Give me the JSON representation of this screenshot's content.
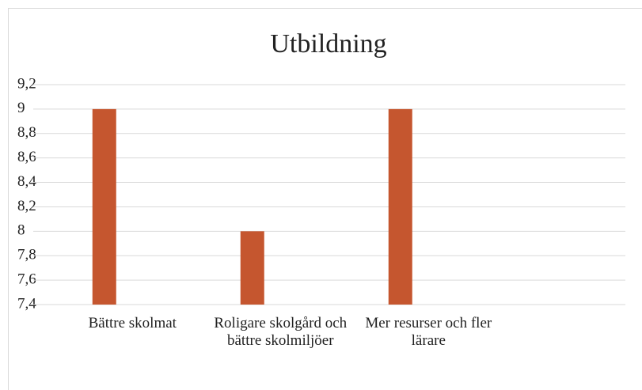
{
  "chart_data": {
    "type": "bar",
    "title": "Utbildning",
    "categories": [
      "Bättre skolmat",
      "Roligare skolgård och bättre skolmiljöer",
      "Mer resurser och fler lärare",
      null
    ],
    "values": [
      9,
      8,
      9,
      null
    ],
    "color": "#c5562f",
    "ylim": [
      7.4,
      9.2
    ],
    "yticks": [
      {
        "value": 7.4,
        "label": "7,4"
      },
      {
        "value": 7.6,
        "label": "7,6"
      },
      {
        "value": 7.8,
        "label": "7,8"
      },
      8,
      {
        "value": 8.2,
        "label": "8,2"
      },
      {
        "value": 8.4,
        "label": "8,4"
      },
      {
        "value": 8.6,
        "label": "8,6"
      },
      {
        "value": 8.8,
        "label": "8,8"
      },
      9,
      {
        "value": 9.2,
        "label": "9,2"
      }
    ],
    "grid": true
  }
}
